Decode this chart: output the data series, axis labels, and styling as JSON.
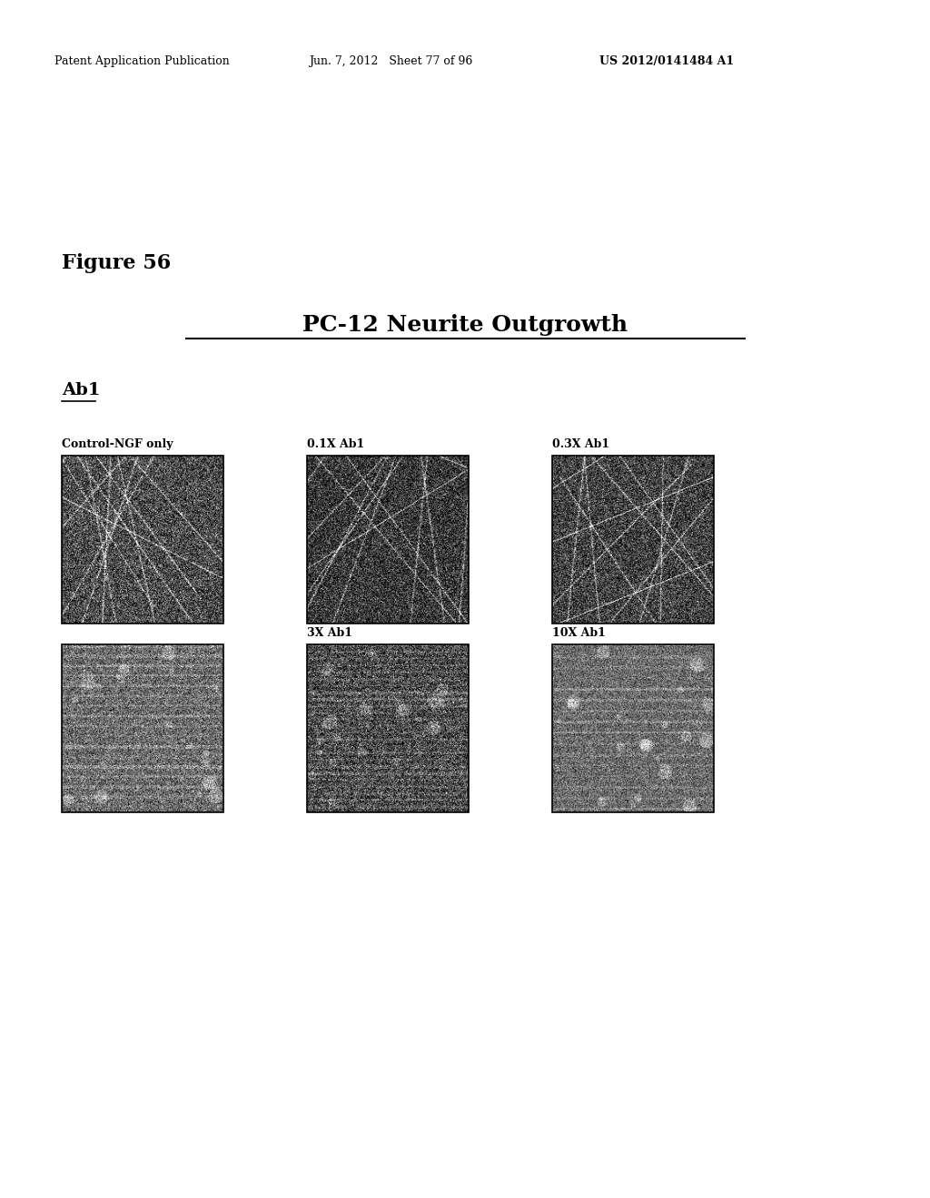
{
  "page_header_left": "Patent Application Publication",
  "page_header_mid": "Jun. 7, 2012   Sheet 77 of 96",
  "page_header_right": "US 2012/0141484 A1",
  "figure_label": "Figure 56",
  "figure_title": "PC-12 Neurite Outgrowth",
  "subtitle": "Ab1",
  "image_labels_row1": [
    "Control-NGF only",
    "0.1X Ab1",
    "0.3X Ab1"
  ],
  "image_labels_row2": [
    "",
    "3X Ab1",
    "10X Ab1"
  ],
  "background_color": "#ffffff",
  "text_color": "#000000",
  "header_fontsize": 9,
  "figure_label_fontsize": 16,
  "title_fontsize": 18,
  "subtitle_fontsize": 14,
  "label_fontsize": 9,
  "fig_width": 10.24,
  "fig_height": 13.2
}
